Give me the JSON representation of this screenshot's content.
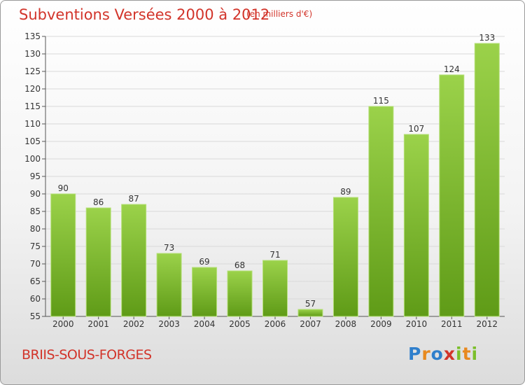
{
  "header": {
    "title": "Subventions Versées 2000 à 2012",
    "units": "(en milliers d'€)"
  },
  "footer": {
    "commune": "BRIIS-SOUS-FORGES",
    "logo_letters": [
      "P",
      "r",
      "o",
      "x",
      "i",
      "t",
      "i"
    ]
  },
  "colors": {
    "bar_top": "#9bd24a",
    "bar_bottom": "#5f9b17",
    "grid": "#d9d9d9",
    "title": "#d2342a"
  },
  "chart_data": {
    "type": "bar",
    "title": "Subventions Versées 2000 à 2012",
    "subtitle": "(en milliers d'€)",
    "xlabel": "",
    "ylabel": "",
    "categories": [
      "2000",
      "2001",
      "2002",
      "2003",
      "2004",
      "2005",
      "2006",
      "2007",
      "2008",
      "2009",
      "2010",
      "2011",
      "2012"
    ],
    "values": [
      90,
      86,
      87,
      73,
      69,
      68,
      71,
      57,
      89,
      115,
      107,
      124,
      133
    ],
    "ylim": [
      55,
      135
    ],
    "yticks": [
      55,
      60,
      65,
      70,
      75,
      80,
      85,
      90,
      95,
      100,
      105,
      110,
      115,
      120,
      125,
      130,
      135
    ],
    "grid": true,
    "legend": "none"
  }
}
